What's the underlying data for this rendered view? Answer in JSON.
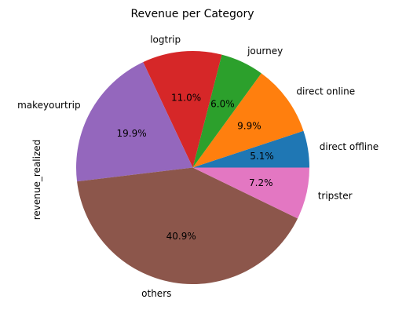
{
  "chart_data": {
    "type": "pie",
    "title": "Revenue per Category",
    "ylabel": "revenue_realized",
    "autopct_format": "1 decimal percent",
    "start_angle_deg": 0,
    "direction": "counterclockwise",
    "slices": [
      {
        "label": "direct offline",
        "percent": 5.1,
        "color": "#1f77b4"
      },
      {
        "label": "direct online",
        "percent": 9.9,
        "color": "#ff7f0e"
      },
      {
        "label": "journey",
        "percent": 6.0,
        "color": "#2ca02c"
      },
      {
        "label": "logtrip",
        "percent": 11.0,
        "color": "#d62728"
      },
      {
        "label": "makeyourtrip",
        "percent": 19.9,
        "color": "#9467bd"
      },
      {
        "label": "others",
        "percent": 40.9,
        "color": "#8c564b"
      },
      {
        "label": "tripster",
        "percent": 7.2,
        "color": "#e377c2"
      }
    ]
  }
}
